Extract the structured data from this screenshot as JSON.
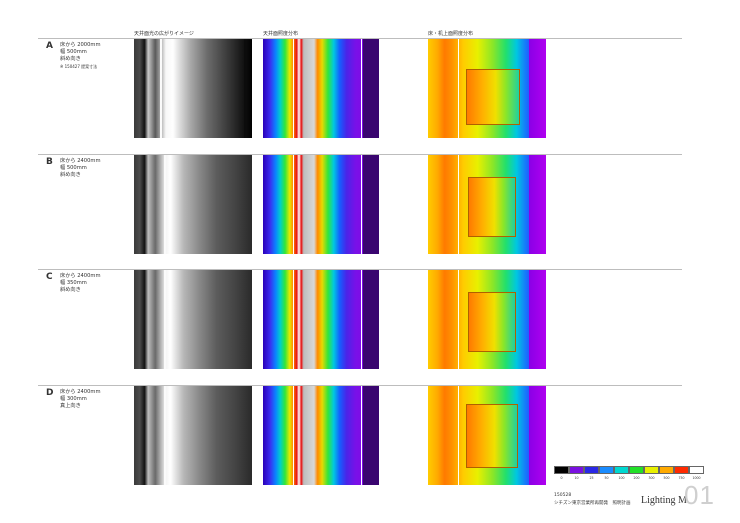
{
  "columns": {
    "ceiling_image": "天井面光の広がりイメージ",
    "ceiling_illuminance": "天井面照度分布",
    "floor_illuminance": "床・机上面照度分布"
  },
  "rows": [
    {
      "letter": "A",
      "line1": "床から 2000mm",
      "line2": "幅 500mm",
      "line3": "斜め向き",
      "note": "※ 150427 提案寸法"
    },
    {
      "letter": "B",
      "line1": "床から 2400mm",
      "line2": "幅 500mm",
      "line3": "斜め向き",
      "note": ""
    },
    {
      "letter": "C",
      "line1": "床から 2400mm",
      "line2": "幅 350mm",
      "line3": "斜め向き",
      "note": ""
    },
    {
      "letter": "D",
      "line1": "床から 2400mm",
      "line2": "幅 300mm",
      "line3": "真上向き",
      "note": ""
    }
  ],
  "legend": {
    "colors": [
      "#000000",
      "#7a10e0",
      "#2a28e6",
      "#1a8cff",
      "#00d8d0",
      "#22e028",
      "#e8f000",
      "#ffaa00",
      "#ff2a00",
      "#ffffff"
    ],
    "ticks": [
      "0",
      "10",
      "25",
      "50",
      "100",
      "200",
      "300",
      "500",
      "750",
      "1000"
    ]
  },
  "title_block": {
    "doc_code": "150528",
    "project": "シチズン東京営業所再開発　照明計画",
    "brand": "Lighting M",
    "sheet_number": "01"
  }
}
